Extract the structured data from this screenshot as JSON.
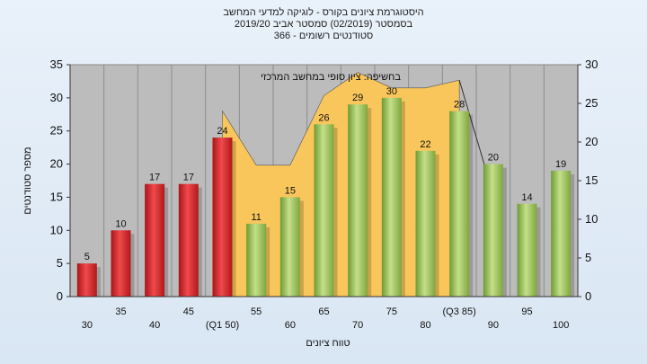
{
  "chart_data": {
    "type": "bar",
    "title": "היסטוגרמת ציונים בקורס - לוגיקה למדעי המחשב",
    "subtitle": "בסמסטר   (02/2019)  סמסטר אביב 2019/20",
    "subtitle2": "סטודנטים רשומים - 366",
    "xlabel": "טווח ציונים",
    "ylabel": "מספר סטודנטים",
    "annotation": "בחשיפה: ציון סופי במחשב המרכזי",
    "categories": [
      "30",
      "35",
      "40",
      "45",
      "(Q1 50)",
      "55",
      "60",
      "65",
      "70",
      "75",
      "80",
      "(Q3 85)",
      "90",
      "95",
      "100"
    ],
    "values": [
      5,
      10,
      17,
      17,
      24,
      11,
      15,
      26,
      29,
      30,
      22,
      28,
      20,
      14,
      19
    ],
    "bar_colors": [
      "red",
      "red",
      "red",
      "red",
      "red",
      "green",
      "green",
      "green",
      "green",
      "green",
      "green",
      "green",
      "green",
      "green",
      "green"
    ],
    "area_series": {
      "x_start": "(Q1 50)",
      "x_end": "(Q3 85)",
      "values": [
        24,
        17,
        17,
        26,
        29,
        27,
        27,
        28
      ]
    },
    "ylim_left": [
      0,
      35
    ],
    "yticks_left": [
      0,
      5,
      10,
      15,
      20,
      25,
      30,
      35
    ],
    "ylim_right": [
      0,
      30
    ],
    "yticks_right": [
      0,
      5,
      10,
      15,
      20,
      25,
      30
    ],
    "grid": true,
    "colors": {
      "plot_bg": "#bcbcbc",
      "grid": "#8c8c8c",
      "red_bar": "#d8262a",
      "green_bar": "#9cc25a",
      "area": "#f8c65a"
    }
  }
}
